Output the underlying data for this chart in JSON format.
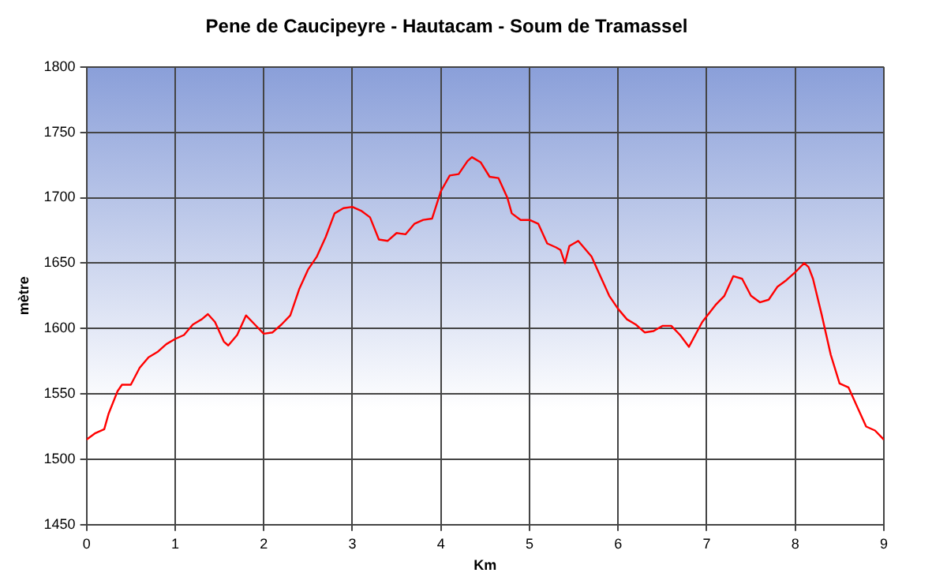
{
  "chart_data": {
    "type": "line",
    "title": "Pene de Caucipeyre - Hautacam - Soum de Tramassel",
    "xlabel": "Km",
    "ylabel": "mètre",
    "x": [
      0,
      0.1,
      0.2,
      0.25,
      0.35,
      0.4,
      0.5,
      0.6,
      0.7,
      0.8,
      0.9,
      1.0,
      1.1,
      1.2,
      1.3,
      1.37,
      1.45,
      1.55,
      1.6,
      1.7,
      1.8,
      1.9,
      2.0,
      2.1,
      2.2,
      2.3,
      2.4,
      2.5,
      2.6,
      2.7,
      2.8,
      2.9,
      3.0,
      3.1,
      3.2,
      3.3,
      3.4,
      3.5,
      3.6,
      3.7,
      3.8,
      3.9,
      4.0,
      4.1,
      4.2,
      4.3,
      4.35,
      4.45,
      4.55,
      4.65,
      4.75,
      4.8,
      4.9,
      5.0,
      5.1,
      5.2,
      5.3,
      5.35,
      5.4,
      5.45,
      5.55,
      5.7,
      5.8,
      5.9,
      6.0,
      6.1,
      6.2,
      6.3,
      6.4,
      6.5,
      6.6,
      6.7,
      6.8,
      6.95,
      7.1,
      7.2,
      7.3,
      7.4,
      7.5,
      7.6,
      7.7,
      7.8,
      7.9,
      8.0,
      8.1,
      8.15,
      8.2,
      8.3,
      8.4,
      8.5,
      8.6,
      8.7,
      8.8,
      8.9,
      9.0
    ],
    "series": [
      {
        "color": "#ff0000",
        "values": [
          1515,
          1520,
          1523,
          1535,
          1552,
          1557,
          1557,
          1570,
          1578,
          1582,
          1588,
          1592,
          1595,
          1603,
          1607,
          1611,
          1605,
          1590,
          1587,
          1595,
          1610,
          1603,
          1596,
          1597,
          1603,
          1610,
          1630,
          1645,
          1655,
          1670,
          1688,
          1692,
          1693,
          1690,
          1685,
          1668,
          1667,
          1673,
          1672,
          1680,
          1683,
          1684,
          1705,
          1717,
          1718,
          1728,
          1731,
          1727,
          1716,
          1715,
          1700,
          1688,
          1683,
          1683,
          1680,
          1665,
          1662,
          1660,
          1650,
          1663,
          1667,
          1655,
          1640,
          1625,
          1615,
          1607,
          1603,
          1597,
          1598,
          1602,
          1602,
          1595,
          1586,
          1605,
          1618,
          1625,
          1640,
          1638,
          1625,
          1620,
          1622,
          1632,
          1637,
          1643,
          1650,
          1647,
          1638,
          1610,
          1580,
          1558,
          1555,
          1540,
          1525,
          1522,
          1515
        ]
      }
    ],
    "xlim": [
      0,
      9
    ],
    "xticks": [
      0,
      1,
      2,
      3,
      4,
      5,
      6,
      7,
      8,
      9
    ],
    "ylim": [
      1450,
      1800
    ],
    "yticks": [
      1450,
      1500,
      1550,
      1600,
      1650,
      1700,
      1750,
      1800
    ],
    "grid": true,
    "legend": false,
    "marker": "none",
    "line_style": "solid"
  }
}
